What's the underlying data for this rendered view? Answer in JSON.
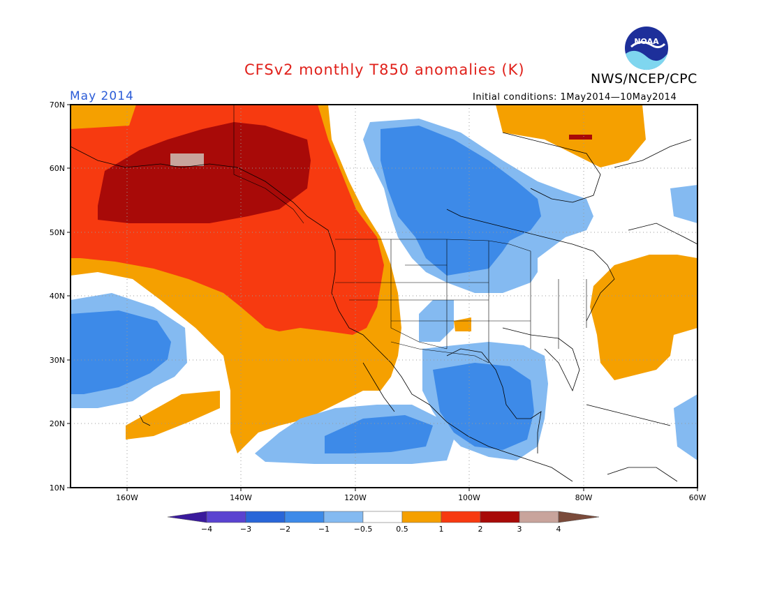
{
  "header": {
    "title": "CFSv2 monthly T850 anomalies (K)",
    "org": "NWS/NCEP/CPC",
    "logo_text": "NOAA",
    "month": "May 2014",
    "initial_conditions": "Initial conditions: 1May2014—10May2014"
  },
  "axes": {
    "lat_labels": [
      "70N",
      "60N",
      "50N",
      "40N",
      "30N",
      "20N",
      "10N"
    ],
    "lon_labels": [
      "160W",
      "140W",
      "120W",
      "100W",
      "80W",
      "60W"
    ]
  },
  "colorbar": {
    "tick_labels": [
      "−4",
      "−3",
      "−2",
      "−1",
      "−0.5",
      "0.5",
      "1",
      "2",
      "3",
      "4"
    ],
    "colors": [
      "#3a1a9c",
      "#5a43d0",
      "#2966d8",
      "#3d8ae8",
      "#84baf1",
      "#ffffff",
      "#f5a000",
      "#f73a10",
      "#a80a08",
      "#c8a49c",
      "#7a4a3a"
    ]
  },
  "map_colors": {
    "ocean_bg": "#ffffff",
    "anom_neg_light": "#84baf1",
    "anom_neg": "#3d8ae8",
    "anom_pos_0_5": "#f5a000",
    "anom_pos_1": "#f73a10",
    "anom_pos_2": "#a80a08",
    "anom_pos_3": "#c8a49c"
  }
}
